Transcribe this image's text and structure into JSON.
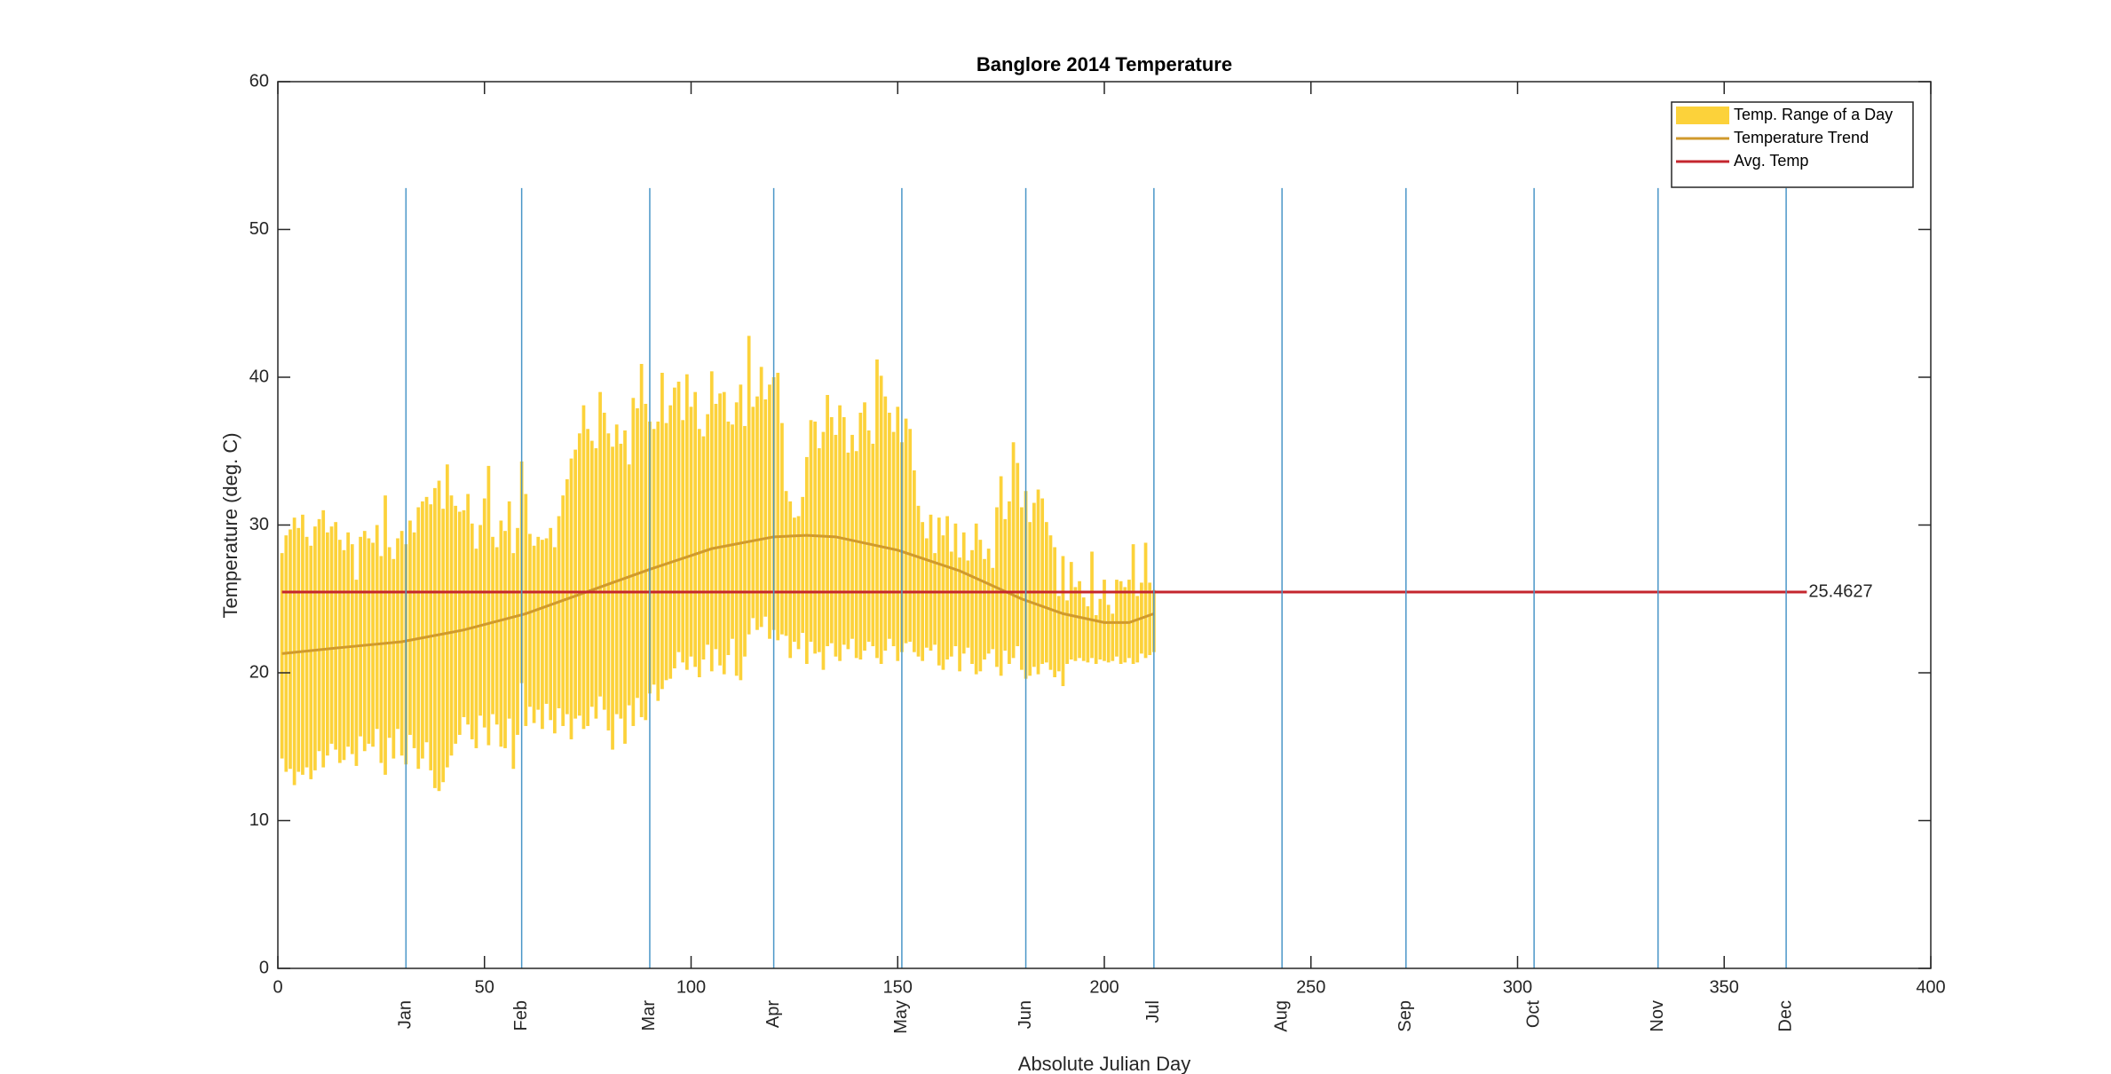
{
  "chart_data": {
    "type": "range-bar",
    "title": "Banglore 2014 Temperature",
    "xlabel": "Absolute Julian Day",
    "ylabel": "Temperature (deg. C)",
    "xlim": [
      0,
      400
    ],
    "xticks": [
      0,
      50,
      100,
      150,
      200,
      250,
      300,
      350,
      400
    ],
    "ylim": [
      0,
      60
    ],
    "yticks": [
      0,
      10,
      20,
      30,
      40,
      50,
      60
    ],
    "legend": "top-right",
    "month_lines": {
      "color": "#4a96c8",
      "ylim": [
        0,
        52.8
      ],
      "labels": [
        "Jan",
        "Feb",
        "Mar",
        "Apr",
        "May",
        "Jun",
        "Jul",
        "Aug",
        "Sep",
        "Oct",
        "Nov",
        "Dec"
      ],
      "x": [
        31,
        59,
        90,
        120,
        151,
        181,
        212,
        243,
        273,
        304,
        334,
        365
      ]
    },
    "series": [
      {
        "name": "Temp. Range of a Day",
        "type": "range",
        "color": "#fcd23a",
        "x": [
          1,
          2,
          3,
          4,
          5,
          6,
          7,
          8,
          9,
          10,
          11,
          12,
          13,
          14,
          15,
          16,
          17,
          18,
          19,
          20,
          21,
          22,
          23,
          24,
          25,
          26,
          27,
          28,
          29,
          30,
          31,
          32,
          33,
          34,
          35,
          36,
          37,
          38,
          39,
          40,
          41,
          42,
          43,
          44,
          45,
          46,
          47,
          48,
          49,
          50,
          51,
          52,
          53,
          54,
          55,
          56,
          57,
          58,
          59,
          60,
          61,
          62,
          63,
          64,
          65,
          66,
          67,
          68,
          69,
          70,
          71,
          72,
          73,
          74,
          75,
          76,
          77,
          78,
          79,
          80,
          81,
          82,
          83,
          84,
          85,
          86,
          87,
          88,
          89,
          90,
          91,
          92,
          93,
          94,
          95,
          96,
          97,
          98,
          99,
          100,
          101,
          102,
          103,
          104,
          105,
          106,
          107,
          108,
          109,
          110,
          111,
          112,
          113,
          114,
          115,
          116,
          117,
          118,
          119,
          120,
          121,
          122,
          123,
          124,
          125,
          126,
          127,
          128,
          129,
          130,
          131,
          132,
          133,
          134,
          135,
          136,
          137,
          138,
          139,
          140,
          141,
          142,
          143,
          144,
          145,
          146,
          147,
          148,
          149,
          150,
          151,
          152,
          153,
          154,
          155,
          156,
          157,
          158,
          159,
          160,
          161,
          162,
          163,
          164,
          165,
          166,
          167,
          168,
          169,
          170,
          171,
          172,
          173,
          174,
          175,
          176,
          177,
          178,
          179,
          180,
          181,
          182,
          183,
          184,
          185,
          186,
          187,
          188,
          189,
          190,
          191,
          192,
          193,
          194,
          195,
          196,
          197,
          198,
          199,
          200,
          201,
          202,
          203,
          204,
          205,
          206,
          207,
          208,
          209,
          210,
          211,
          212
        ],
        "low": [
          14.2,
          13.3,
          13.5,
          12.4,
          13.3,
          13.1,
          13.6,
          12.8,
          13.4,
          14.7,
          13.6,
          14.4,
          15.2,
          14.8,
          13.9,
          14.1,
          15.0,
          14.5,
          13.7,
          15.7,
          14.7,
          15.2,
          15.0,
          16.2,
          13.9,
          13.1,
          15.6,
          14.2,
          16.2,
          14.4,
          13.8,
          15.8,
          14.9,
          13.5,
          14.2,
          15.3,
          13.4,
          12.2,
          12.0,
          12.6,
          13.6,
          14.4,
          15.2,
          15.8,
          17.0,
          16.5,
          15.5,
          14.9,
          17.1,
          16.3,
          15.1,
          17.2,
          16.5,
          15.0,
          14.9,
          16.9,
          13.5,
          15.8,
          19.3,
          16.4,
          17.7,
          16.6,
          17.5,
          16.2,
          17.9,
          16.8,
          15.9,
          17.6,
          16.4,
          17.2,
          15.5,
          16.9,
          17.1,
          16.2,
          16.4,
          17.7,
          16.9,
          18.4,
          17.5,
          16.1,
          14.8,
          17.2,
          16.9,
          15.2,
          17.8,
          16.4,
          18.3,
          17.0,
          16.8,
          18.6,
          19.2,
          18.1,
          18.9,
          19.5,
          19.6,
          20.3,
          21.4,
          20.7,
          20.2,
          21.1,
          20.4,
          19.7,
          20.9,
          21.9,
          20.1,
          21.6,
          20.5,
          19.9,
          21.2,
          22.3,
          19.8,
          19.5,
          21.1,
          22.6,
          23.7,
          22.9,
          23.1,
          23.8,
          22.3,
          22.9,
          22.2,
          22.6,
          22.5,
          21.0,
          22.1,
          21.6,
          22.7,
          20.6,
          22.1,
          21.3,
          21.4,
          20.2,
          21.8,
          22.0,
          21.1,
          20.8,
          21.9,
          21.6,
          22.3,
          21.0,
          20.9,
          21.5,
          22.1,
          21.8,
          21.0,
          20.6,
          21.5,
          22.3,
          21.8,
          20.8,
          21.4,
          22.0,
          22.1,
          21.4,
          21.1,
          20.8,
          21.7,
          21.5,
          21.9,
          20.5,
          20.2,
          20.9,
          21.1,
          21.8,
          20.1,
          21.3,
          21.7,
          20.6,
          19.9,
          20.1,
          20.9,
          21.3,
          21.6,
          20.4,
          19.8,
          21.5,
          20.6,
          21.0,
          21.8,
          20.2,
          19.6,
          19.8,
          20.4,
          19.9,
          20.6,
          20.7,
          20.2,
          19.7,
          20.1,
          19.1,
          20.6,
          20.9,
          20.8,
          21.0,
          20.8,
          20.7,
          21.0,
          20.6,
          20.9,
          20.8,
          20.7,
          20.8,
          21.1,
          20.6,
          20.7,
          21.0,
          20.6,
          20.7,
          21.3,
          21.0,
          21.2,
          21.4
        ],
        "high": [
          28.1,
          29.3,
          29.7,
          30.5,
          29.8,
          30.7,
          29.2,
          28.6,
          29.9,
          30.4,
          31.0,
          29.5,
          29.9,
          30.2,
          29.0,
          28.3,
          29.5,
          28.7,
          26.3,
          29.2,
          29.6,
          29.1,
          28.8,
          30.0,
          27.9,
          32.0,
          28.5,
          27.7,
          29.1,
          29.6,
          28.7,
          30.3,
          29.5,
          31.2,
          31.6,
          31.9,
          31.4,
          32.5,
          33.0,
          31.1,
          34.1,
          32.0,
          31.3,
          30.9,
          31.0,
          32.1,
          30.1,
          28.4,
          30.0,
          31.8,
          34.0,
          29.2,
          28.5,
          30.3,
          29.6,
          31.6,
          28.1,
          29.8,
          34.3,
          32.1,
          29.4,
          28.6,
          29.2,
          29.0,
          29.1,
          29.8,
          28.5,
          30.6,
          32.0,
          33.1,
          34.5,
          35.1,
          36.2,
          38.1,
          36.5,
          35.7,
          35.2,
          39.0,
          37.6,
          36.2,
          35.3,
          36.8,
          35.5,
          36.4,
          34.1,
          38.6,
          37.9,
          40.9,
          38.2,
          37.0,
          36.5,
          37.0,
          40.3,
          36.9,
          38.1,
          39.3,
          39.7,
          37.1,
          40.2,
          38.0,
          39.0,
          36.5,
          36.0,
          37.5,
          40.4,
          38.2,
          38.9,
          39.0,
          37.0,
          36.8,
          38.3,
          39.5,
          36.7,
          42.8,
          38.0,
          38.7,
          40.7,
          38.5,
          39.5,
          40.0,
          40.3,
          36.9,
          32.3,
          31.6,
          30.5,
          30.6,
          31.9,
          34.6,
          37.1,
          37.0,
          35.2,
          36.3,
          38.8,
          37.3,
          36.1,
          38.1,
          37.3,
          34.9,
          36.1,
          35.0,
          37.6,
          38.3,
          36.4,
          35.5,
          41.2,
          40.1,
          38.7,
          37.6,
          36.3,
          38.0,
          35.6,
          37.2,
          36.5,
          33.7,
          31.3,
          30.2,
          29.1,
          30.7,
          28.1,
          30.5,
          29.3,
          30.6,
          28.2,
          30.1,
          27.8,
          29.5,
          27.6,
          28.3,
          30.1,
          29.0,
          27.7,
          28.4,
          27.1,
          31.2,
          33.3,
          30.4,
          31.6,
          35.6,
          34.2,
          31.2,
          32.3,
          30.2,
          31.5,
          32.4,
          31.8,
          30.2,
          29.3,
          28.5,
          25.2,
          27.9,
          24.9,
          27.5,
          25.8,
          26.2,
          25.1,
          24.5,
          28.2,
          23.9,
          25.0,
          26.3,
          24.6,
          24.0,
          26.3,
          26.2,
          25.8,
          26.3,
          28.7,
          25.2,
          26.1,
          28.8,
          26.1,
          25.6
        ]
      },
      {
        "name": "Temperature Trend",
        "type": "line",
        "color": "#d09a2c",
        "x": [
          1,
          15,
          30,
          45,
          60,
          75,
          90,
          105,
          120,
          128,
          135,
          150,
          165,
          180,
          190,
          200,
          206,
          212
        ],
        "values": [
          21.3,
          21.7,
          22.1,
          22.9,
          24.0,
          25.5,
          27.0,
          28.4,
          29.2,
          29.3,
          29.2,
          28.3,
          26.9,
          25.0,
          24.0,
          23.4,
          23.4,
          24.0
        ]
      },
      {
        "name": "Avg. Temp",
        "type": "line",
        "color": "#c4262e",
        "label_end": true,
        "x": [
          1,
          370
        ],
        "values": [
          25.4627,
          25.4627
        ]
      }
    ]
  }
}
